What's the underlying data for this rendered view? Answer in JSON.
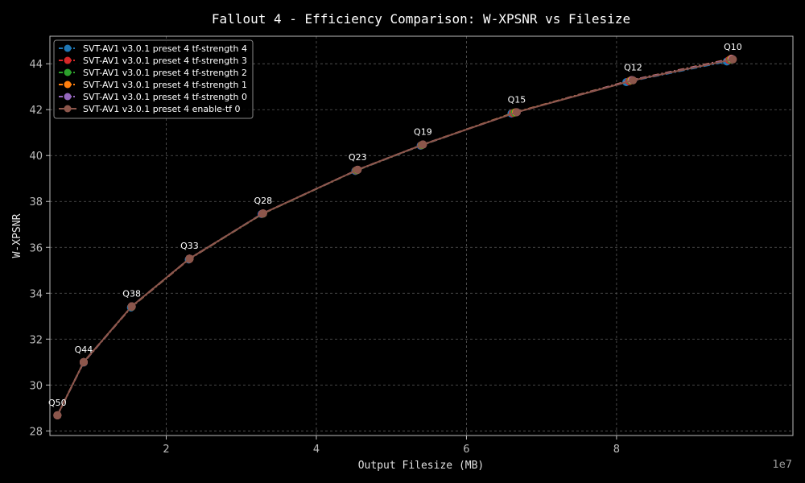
{
  "chart_data": {
    "type": "line",
    "title": "Fallout 4 - Efficiency Comparison: W-XPSNR vs Filesize",
    "xlabel": "Output Filesize (MB)",
    "ylabel": "W-XPSNR",
    "x_offset_label": "1e7",
    "xlim": [
      0.45,
      10.35
    ],
    "ylim": [
      27.8,
      45.2
    ],
    "xticks": [
      2,
      4,
      6,
      8
    ],
    "yticks": [
      28,
      30,
      32,
      34,
      36,
      38,
      40,
      42,
      44
    ],
    "grid": true,
    "legend_position": "upper-left",
    "background": "#000000",
    "series": [
      {
        "name": "SVT-AV1 v3.0.1 preset 4 tf-strength 4",
        "color": "#1f77b4",
        "style": "dashdot",
        "x": [
          0.55,
          0.9,
          1.53,
          2.3,
          3.27,
          4.52,
          5.39,
          6.6,
          8.13,
          9.47
        ],
        "y": [
          28.68,
          30.98,
          33.38,
          35.47,
          37.45,
          39.33,
          40.43,
          41.83,
          43.2,
          44.1
        ]
      },
      {
        "name": "SVT-AV1 v3.0.1 preset 4 tf-strength 3",
        "color": "#d62728",
        "style": "dashdot",
        "x": [
          0.55,
          0.9,
          1.54,
          2.31,
          3.28,
          4.53,
          5.4,
          6.62,
          8.17,
          9.5
        ],
        "y": [
          28.68,
          30.99,
          33.41,
          35.49,
          37.46,
          39.35,
          40.45,
          41.85,
          43.24,
          44.16
        ]
      },
      {
        "name": "SVT-AV1 v3.0.1 preset 4 tf-strength 2",
        "color": "#2ca02c",
        "style": "dashdot",
        "x": [
          0.55,
          0.9,
          1.54,
          2.31,
          3.29,
          4.54,
          5.41,
          6.64,
          8.19,
          9.52
        ],
        "y": [
          28.68,
          31.0,
          33.42,
          35.5,
          37.47,
          39.36,
          40.46,
          41.87,
          43.27,
          44.19
        ]
      },
      {
        "name": "SVT-AV1 v3.0.1 preset 4 tf-strength 1",
        "color": "#ff7f0e",
        "style": "dashdot",
        "x": [
          0.55,
          0.9,
          1.54,
          2.31,
          3.29,
          4.55,
          5.42,
          6.66,
          8.2,
          9.53
        ],
        "y": [
          28.68,
          31.0,
          33.43,
          35.51,
          37.48,
          39.38,
          40.48,
          41.89,
          43.29,
          44.22
        ]
      },
      {
        "name": "SVT-AV1 v3.0.1 preset 4 tf-strength 0",
        "color": "#9467bd",
        "style": "dashdot",
        "x": [
          0.55,
          0.9,
          1.54,
          2.31,
          3.29,
          4.55,
          5.42,
          6.67,
          8.21,
          9.54
        ],
        "y": [
          28.68,
          31.0,
          33.43,
          35.51,
          37.48,
          39.38,
          40.48,
          41.89,
          43.29,
          44.21
        ]
      },
      {
        "name": "SVT-AV1 v3.0.1 preset 4 enable-tf 0",
        "color": "#8c564b",
        "style": "solid",
        "x": [
          0.55,
          0.9,
          1.54,
          2.31,
          3.29,
          4.55,
          5.42,
          6.67,
          8.22,
          9.55
        ],
        "y": [
          28.68,
          31.0,
          33.43,
          35.51,
          37.48,
          39.38,
          40.48,
          41.89,
          43.28,
          44.19
        ]
      }
    ],
    "annotations": [
      {
        "text": "Q50",
        "x": 0.55,
        "y": 28.68
      },
      {
        "text": "Q44",
        "x": 0.9,
        "y": 31.0
      },
      {
        "text": "Q38",
        "x": 1.54,
        "y": 33.43
      },
      {
        "text": "Q33",
        "x": 2.31,
        "y": 35.51
      },
      {
        "text": "Q28",
        "x": 3.29,
        "y": 37.48
      },
      {
        "text": "Q23",
        "x": 4.55,
        "y": 39.38
      },
      {
        "text": "Q19",
        "x": 5.42,
        "y": 40.48
      },
      {
        "text": "Q15",
        "x": 6.67,
        "y": 41.89
      },
      {
        "text": "Q12",
        "x": 8.22,
        "y": 43.28
      },
      {
        "text": "Q10",
        "x": 9.55,
        "y": 44.19
      }
    ]
  }
}
